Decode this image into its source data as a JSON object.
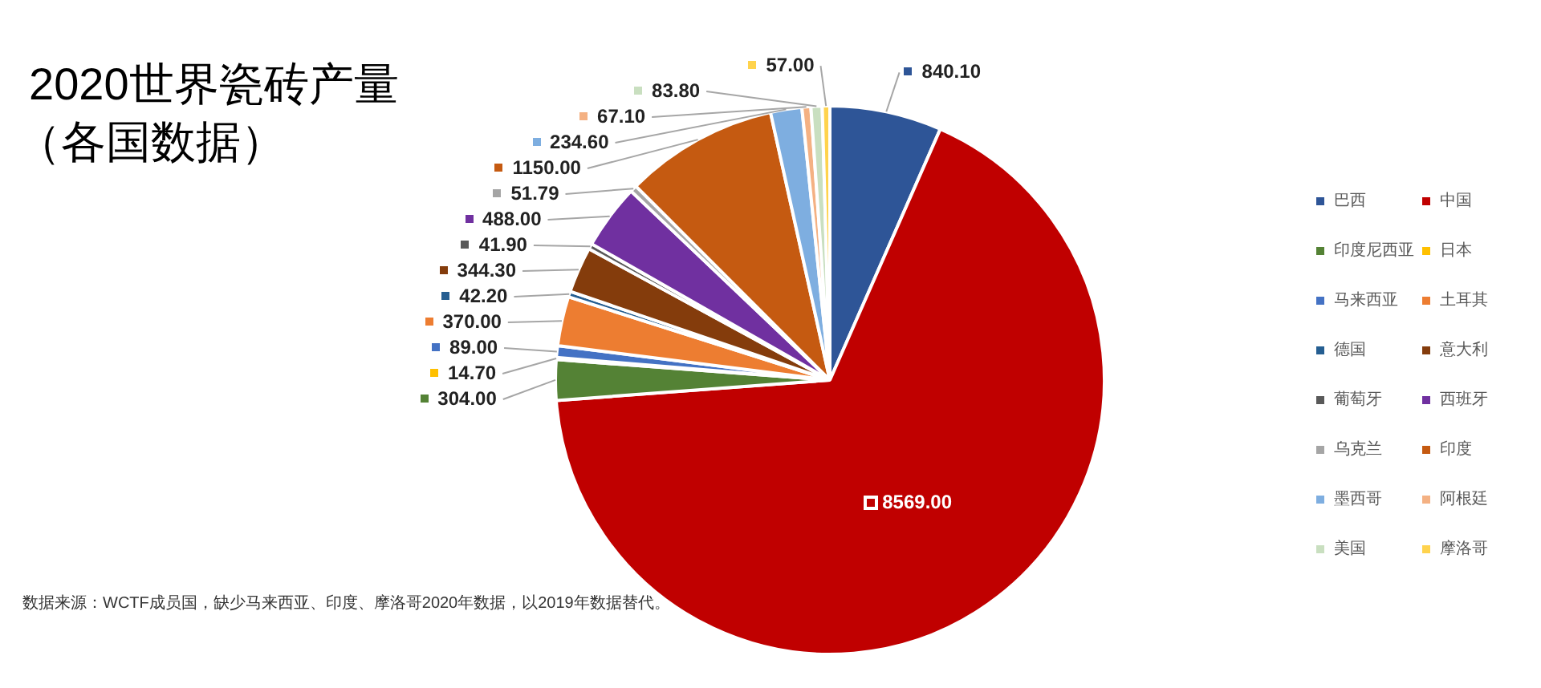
{
  "chart_data": {
    "type": "pie",
    "title": "2020世界瓷砖产量",
    "subtitle": "（各国数据）",
    "categories": [
      "巴西",
      "中国",
      "印度尼西亚",
      "日本",
      "马来西亚",
      "土耳其",
      "德国",
      "意大利",
      "葡萄牙",
      "西班牙",
      "乌克兰",
      "印度",
      "墨西哥",
      "阿根廷",
      "美国",
      "摩洛哥"
    ],
    "values": [
      840.1,
      8569,
      304,
      14.7,
      89,
      370,
      42.2,
      344.3,
      41.9,
      488,
      51.79,
      1150,
      234.6,
      67.1,
      83.8,
      57
    ],
    "value_labels": [
      "840.10",
      "8569.00",
      "304.00",
      "14.70",
      "89.00",
      "370.00",
      "42.20",
      "344.30",
      "41.90",
      "488.00",
      "51.79",
      "1150.00",
      "234.60",
      "67.10",
      "83.80",
      "57.00"
    ],
    "colors": [
      "#2e5597",
      "#c00000",
      "#548235",
      "#ffc000",
      "#4472c4",
      "#ed7d31",
      "#255e91",
      "#843c0c",
      "#595959",
      "#7030a0",
      "#a5a5a5",
      "#c55a11",
      "#7eaee0",
      "#f4b183",
      "#c9dfc0",
      "#ffd34d"
    ],
    "legend": "right",
    "annotations": [
      "数据来源：WCTF成员国，缺少马来西亚、印度、摩洛哥2020年数据，以2019年数据替代。"
    ]
  }
}
